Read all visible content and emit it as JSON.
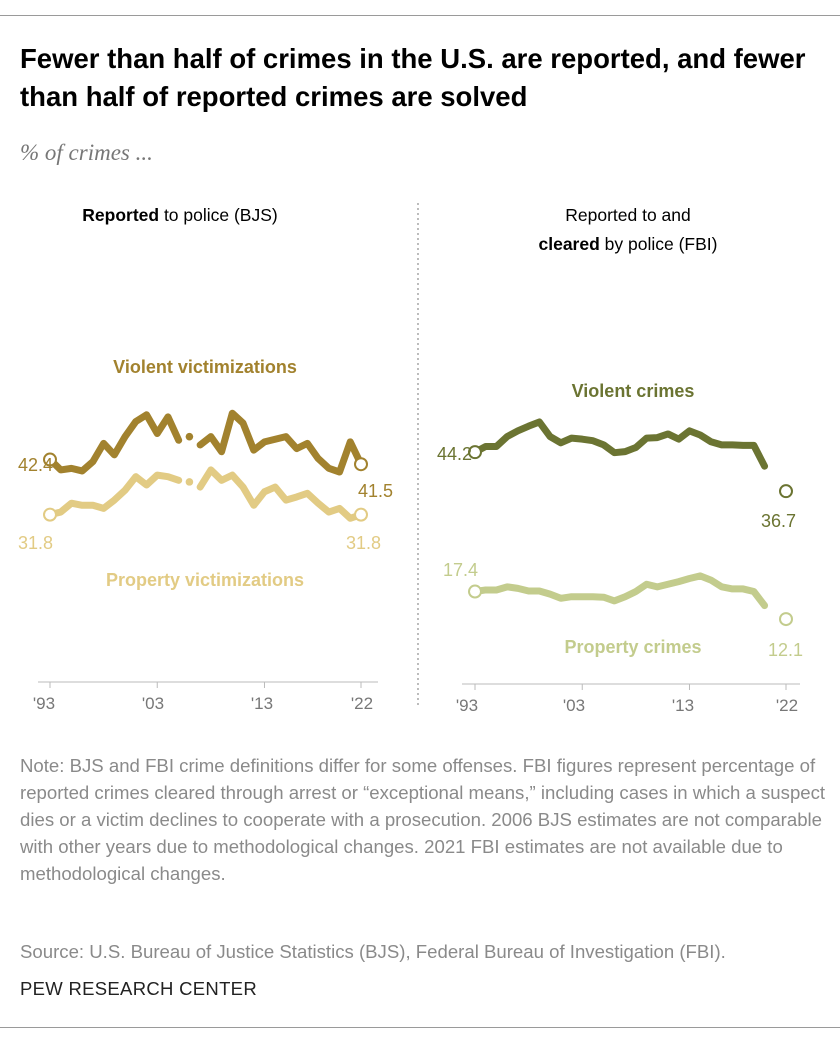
{
  "title": "Fewer than half of crimes in the U.S. are reported, and fewer than half of reported crimes are solved",
  "subtitle": "% of crimes ...",
  "chart_data": [
    {
      "type": "line",
      "panel_title_bold": "Reported",
      "panel_title_rest": " to police (BJS)",
      "x": [
        1993,
        1994,
        1995,
        1996,
        1997,
        1998,
        1999,
        2000,
        2001,
        2002,
        2003,
        2004,
        2005,
        2006,
        2007,
        2008,
        2009,
        2010,
        2011,
        2012,
        2013,
        2014,
        2015,
        2016,
        2017,
        2018,
        2019,
        2020,
        2021,
        2022
      ],
      "x_tick_labels": [
        "'93",
        "'03",
        "'13",
        "'22"
      ],
      "x_ticks": [
        1993,
        2003,
        2013,
        2022
      ],
      "ylim": [
        0,
        55
      ],
      "not_comparable_years": [
        2006
      ],
      "series": [
        {
          "name": "Violent victimizations",
          "color": "#a2822e",
          "values": [
            42.4,
            40.4,
            40.7,
            40.2,
            42.0,
            45.5,
            43.3,
            46.8,
            49.7,
            51.0,
            47.4,
            50.6,
            46.1,
            46.8,
            45.2,
            46.8,
            43.9,
            51.3,
            49.4,
            44.2,
            45.8,
            46.3,
            46.8,
            44.5,
            45.5,
            42.6,
            40.7,
            40.0,
            45.8,
            41.5
          ],
          "start_label": "42.4",
          "end_label": "41.5"
        },
        {
          "name": "Property victimizations",
          "color": "#e2cb84",
          "values": [
            31.8,
            32.3,
            34.0,
            33.6,
            33.6,
            33.0,
            34.6,
            36.5,
            39.1,
            37.5,
            39.4,
            39.1,
            38.4,
            38.1,
            37.1,
            40.4,
            38.4,
            39.4,
            37.1,
            33.6,
            36.2,
            37.1,
            34.6,
            35.2,
            35.9,
            34.0,
            32.3,
            33.0,
            31.1,
            31.8
          ],
          "start_label": "31.8",
          "end_label": "31.8"
        }
      ]
    },
    {
      "type": "line",
      "panel_title_line1": "Reported to and",
      "panel_title_bold": "cleared",
      "panel_title_rest": " by police (FBI)",
      "x": [
        1993,
        1994,
        1995,
        1996,
        1997,
        1998,
        1999,
        2000,
        2001,
        2002,
        2003,
        2004,
        2005,
        2006,
        2007,
        2008,
        2009,
        2010,
        2011,
        2012,
        2013,
        2014,
        2015,
        2016,
        2017,
        2018,
        2019,
        2020,
        2021,
        2022
      ],
      "x_tick_labels": [
        "'93",
        "'03",
        "'13",
        "'22"
      ],
      "x_ticks": [
        1993,
        2003,
        2013,
        2022
      ],
      "ylim": [
        0,
        55
      ],
      "missing_years": [
        2021
      ],
      "series": [
        {
          "name": "Violent crimes",
          "color": "#6b7432",
          "values": [
            44.2,
            45.3,
            45.3,
            47.2,
            48.3,
            49.2,
            50.0,
            47.2,
            46.0,
            46.9,
            46.7,
            46.4,
            45.6,
            44.1,
            44.3,
            45.1,
            46.9,
            47.0,
            47.7,
            46.7,
            48.3,
            47.5,
            46.2,
            45.6,
            45.6,
            45.5,
            45.5,
            41.5,
            null,
            36.7
          ],
          "start_label": "44.2",
          "end_label": "36.7"
        },
        {
          "name": "Property crimes",
          "color": "#c3cc8d",
          "values": [
            17.4,
            17.7,
            17.7,
            18.3,
            18.0,
            17.5,
            17.5,
            16.9,
            16.1,
            16.4,
            16.4,
            16.4,
            16.3,
            15.6,
            16.4,
            17.4,
            18.8,
            18.3,
            18.8,
            19.3,
            19.9,
            20.4,
            19.6,
            18.3,
            17.9,
            17.9,
            17.4,
            14.7,
            null,
            12.1
          ],
          "start_label": "17.4",
          "end_label": "12.1"
        }
      ]
    }
  ],
  "notes": "Note: BJS and FBI crime definitions differ for some offenses. FBI figures represent percentage of reported crimes cleared through arrest or “exceptional means,” including cases in which a suspect dies or a victim declines to cooperate with a prosecution. 2006 BJS estimates are not comparable with other years due to methodological changes. 2021 FBI estimates are not available due to methodological changes.",
  "source": "Source: U.S. Bureau of Justice Statistics (BJS), Federal Bureau of Investigation (FBI).",
  "brand": "PEW RESEARCH CENTER"
}
